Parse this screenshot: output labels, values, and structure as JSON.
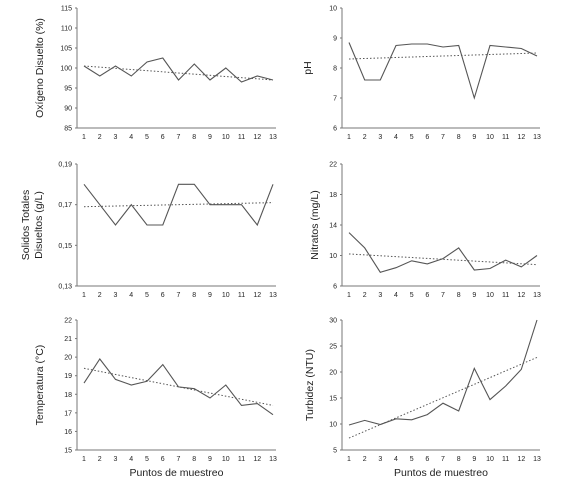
{
  "chart_data": [
    {
      "type": "line",
      "ylabel": "Oxígeno Disuelto (%)",
      "xlabel": "",
      "categories": [
        "1",
        "2",
        "3",
        "4",
        "5",
        "6",
        "7",
        "8",
        "9",
        "10",
        "11",
        "12",
        "13"
      ],
      "yticks": [
        "85",
        "90",
        "95",
        "100",
        "105",
        "110",
        "115"
      ],
      "ylim": [
        85,
        115
      ],
      "series": [
        {
          "values": [
            100.5,
            98,
            100.5,
            98,
            101.5,
            102.5,
            97,
            101,
            97,
            100,
            96.5,
            98,
            97
          ]
        }
      ],
      "trendline": [
        100.5,
        97
      ]
    },
    {
      "type": "line",
      "ylabel": "pH",
      "xlabel": "",
      "categories": [
        "1",
        "2",
        "3",
        "4",
        "5",
        "6",
        "7",
        "8",
        "9",
        "10",
        "11",
        "12",
        "13"
      ],
      "yticks": [
        "6",
        "7",
        "8",
        "9",
        "10"
      ],
      "ylim": [
        6,
        10
      ],
      "series": [
        {
          "values": [
            8.85,
            7.6,
            7.6,
            8.75,
            8.8,
            8.8,
            8.7,
            8.75,
            7.0,
            8.75,
            8.7,
            8.65,
            8.4
          ]
        }
      ],
      "trendline": [
        8.3,
        8.5
      ]
    },
    {
      "type": "line",
      "ylabel": "Solidos Totales Disueltos (g/L)",
      "xlabel": "",
      "categories": [
        "1",
        "2",
        "3",
        "4",
        "5",
        "6",
        "7",
        "8",
        "9",
        "10",
        "11",
        "12",
        "13"
      ],
      "yticks": [
        "0,13",
        "0,15",
        "0,17",
        "0,19"
      ],
      "ylim": [
        0.13,
        0.19
      ],
      "series": [
        {
          "values": [
            0.18,
            0.17,
            0.16,
            0.17,
            0.16,
            0.16,
            0.18,
            0.18,
            0.17,
            0.17,
            0.17,
            0.16,
            0.18
          ]
        }
      ],
      "trendline": [
        0.169,
        0.171
      ]
    },
    {
      "type": "line",
      "ylabel": "Nitratos (mg/L)",
      "xlabel": "",
      "categories": [
        "1",
        "2",
        "3",
        "4",
        "5",
        "6",
        "7",
        "8",
        "9",
        "10",
        "11",
        "12",
        "13"
      ],
      "yticks": [
        "6",
        "10",
        "14",
        "18",
        "22"
      ],
      "ylim": [
        6,
        22
      ],
      "series": [
        {
          "values": [
            13,
            11,
            7.8,
            8.4,
            9.3,
            8.9,
            9.6,
            11,
            8.1,
            8.3,
            9.4,
            8.5,
            10
          ]
        }
      ],
      "trendline": [
        10.2,
        8.8
      ]
    },
    {
      "type": "line",
      "ylabel": "Temperatura (°C)",
      "xlabel": "Puntos de muestreo",
      "categories": [
        "1",
        "2",
        "3",
        "4",
        "5",
        "6",
        "7",
        "8",
        "9",
        "10",
        "11",
        "12",
        "13"
      ],
      "yticks": [
        "15",
        "16",
        "17",
        "18",
        "19",
        "20",
        "21",
        "22"
      ],
      "ylim": [
        15,
        22
      ],
      "series": [
        {
          "values": [
            18.6,
            19.9,
            18.8,
            18.5,
            18.7,
            19.6,
            18.4,
            18.3,
            17.8,
            18.5,
            17.4,
            17.5,
            16.9
          ]
        }
      ],
      "trendline": [
        19.4,
        17.4
      ]
    },
    {
      "type": "line",
      "ylabel": "Turbidez (NTU)",
      "xlabel": "Puntos de muestreo",
      "categories": [
        "1",
        "2",
        "3",
        "4",
        "5",
        "6",
        "7",
        "8",
        "9",
        "10",
        "11",
        "12",
        "13"
      ],
      "yticks": [
        "5",
        "10",
        "15",
        "20",
        "25",
        "30"
      ],
      "ylim": [
        5,
        30
      ],
      "series": [
        {
          "values": [
            9.8,
            10.7,
            9.9,
            11,
            10.8,
            11.8,
            14,
            12.5,
            20.7,
            14.7,
            17.3,
            20.5,
            30
          ]
        }
      ],
      "trendline": [
        7.3,
        22.8
      ]
    }
  ]
}
